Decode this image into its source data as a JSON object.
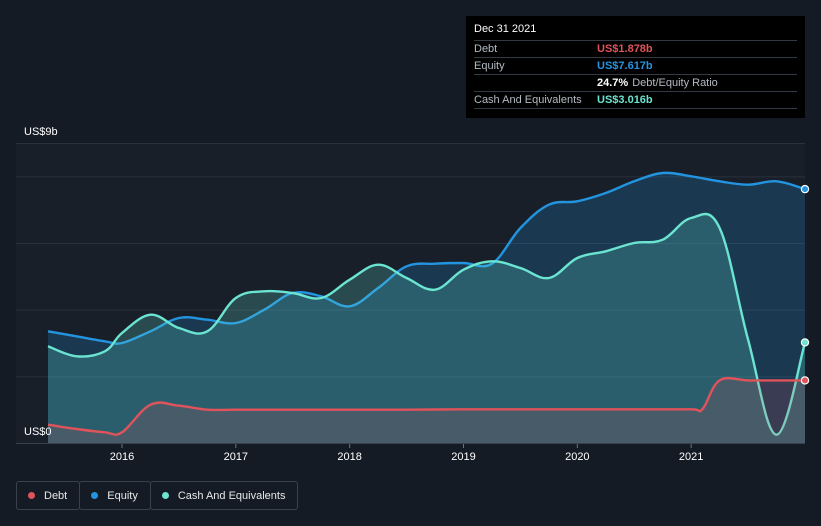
{
  "tooltip": {
    "date": "Dec 31 2021",
    "rows": [
      {
        "label": "Debt",
        "value": "US$1.878b",
        "color": "#e0535a"
      },
      {
        "label": "Equity",
        "value": "US$7.617b",
        "color": "#2394df"
      },
      {
        "ratio_value": "24.7%",
        "ratio_label": "Debt/Equity Ratio"
      },
      {
        "label": "Cash And Equivalents",
        "value": "US$3.016b",
        "color": "#6be4d1"
      }
    ]
  },
  "legend": [
    {
      "label": "Debt",
      "color": "#e0535a"
    },
    {
      "label": "Equity",
      "color": "#2394df"
    },
    {
      "label": "Cash And Equivalents",
      "color": "#6be4d1"
    }
  ],
  "chart_data": {
    "type": "area",
    "y_top_label": "US$9b",
    "y_bottom_label": "US$0",
    "ylim": [
      0,
      9
    ],
    "xlim": [
      2015.35,
      2022.0
    ],
    "x_tick_labels": [
      "2016",
      "2017",
      "2018",
      "2019",
      "2020",
      "2021"
    ],
    "x_tick_values": [
      2016,
      2017,
      2018,
      2019,
      2020,
      2021
    ],
    "grid": true,
    "series": [
      {
        "name": "Equity",
        "color": "#2394df",
        "x": [
          2015.35,
          2015.6,
          2015.85,
          2016.0,
          2016.25,
          2016.5,
          2016.75,
          2017.0,
          2017.25,
          2017.5,
          2017.75,
          2018.0,
          2018.25,
          2018.5,
          2018.75,
          2019.0,
          2019.25,
          2019.5,
          2019.75,
          2020.0,
          2020.25,
          2020.5,
          2020.75,
          2021.0,
          2021.25,
          2021.5,
          2021.75,
          2022.0
        ],
        "values": [
          3.35,
          3.2,
          3.05,
          3.0,
          3.35,
          3.75,
          3.7,
          3.6,
          4.0,
          4.5,
          4.4,
          4.1,
          4.65,
          5.3,
          5.38,
          5.4,
          5.38,
          6.45,
          7.15,
          7.25,
          7.5,
          7.85,
          8.1,
          8.0,
          7.85,
          7.75,
          7.85,
          7.617
        ]
      },
      {
        "name": "Cash And Equivalents",
        "color": "#6be4d1",
        "x": [
          2015.35,
          2015.6,
          2015.85,
          2016.0,
          2016.25,
          2016.5,
          2016.75,
          2017.0,
          2017.25,
          2017.5,
          2017.75,
          2018.0,
          2018.25,
          2018.5,
          2018.75,
          2019.0,
          2019.25,
          2019.5,
          2019.75,
          2020.0,
          2020.25,
          2020.5,
          2020.75,
          2021.0,
          2021.25,
          2021.5,
          2021.75,
          2022.0
        ],
        "values": [
          2.9,
          2.6,
          2.75,
          3.3,
          3.85,
          3.45,
          3.35,
          4.35,
          4.55,
          4.5,
          4.35,
          4.9,
          5.35,
          4.95,
          4.6,
          5.2,
          5.45,
          5.25,
          4.95,
          5.55,
          5.75,
          6.0,
          6.1,
          6.75,
          6.45,
          3.1,
          0.25,
          3.016
        ]
      },
      {
        "name": "Debt",
        "color": "#e0535a",
        "x": [
          2015.35,
          2015.6,
          2015.85,
          2016.0,
          2016.25,
          2016.5,
          2016.75,
          2017.0,
          2017.5,
          2018.0,
          2018.5,
          2019.0,
          2019.5,
          2020.0,
          2020.5,
          2021.0,
          2021.1,
          2021.25,
          2021.5,
          2021.75,
          2022.0
        ],
        "values": [
          0.55,
          0.42,
          0.32,
          0.32,
          1.15,
          1.12,
          1.0,
          1.0,
          1.0,
          1.0,
          1.0,
          1.01,
          1.01,
          1.01,
          1.01,
          1.01,
          1.02,
          1.878,
          1.878,
          1.878,
          1.878
        ]
      }
    ]
  }
}
